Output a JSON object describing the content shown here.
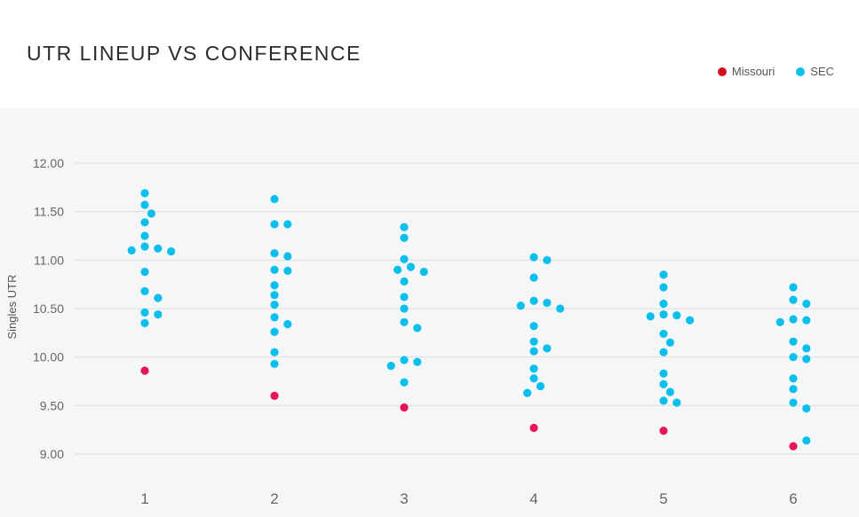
{
  "colors": {
    "missouri": "#e8135a",
    "missouri_legend": "#d0101b",
    "sec": "#0abfeb",
    "grid": "#dcdcdc",
    "plot_bg": "#f5f6f8"
  },
  "chart_data": {
    "type": "scatter",
    "title": "UTR LINEUP VS CONFERENCE",
    "ylabel": "Singles UTR",
    "xlabel": "",
    "ylim": [
      9.0,
      12.0
    ],
    "y_ticks": [
      "12.00",
      "11.50",
      "11.00",
      "10.50",
      "10.00",
      "9.50",
      "9.00"
    ],
    "categories": [
      "1",
      "2",
      "3",
      "4",
      "5",
      "6"
    ],
    "legend": {
      "position": "top-right"
    },
    "grid": true,
    "series": [
      {
        "name": "Missouri",
        "points": [
          {
            "x": "1",
            "y": 9.86
          },
          {
            "x": "2",
            "y": 9.6
          },
          {
            "x": "3",
            "y": 9.48
          },
          {
            "x": "4",
            "y": 9.27
          },
          {
            "x": "5",
            "y": 9.24
          },
          {
            "x": "6",
            "y": 9.08
          }
        ]
      },
      {
        "name": "SEC",
        "points": [
          {
            "x": "1",
            "y": 11.69
          },
          {
            "x": "1",
            "y": 11.57
          },
          {
            "x": "1",
            "y": 11.48
          },
          {
            "x": "1",
            "y": 11.39
          },
          {
            "x": "1",
            "y": 11.25
          },
          {
            "x": "1",
            "y": 11.14
          },
          {
            "x": "1",
            "y": 11.12
          },
          {
            "x": "1",
            "y": 11.1
          },
          {
            "x": "1",
            "y": 11.09
          },
          {
            "x": "1",
            "y": 10.88
          },
          {
            "x": "1",
            "y": 10.68
          },
          {
            "x": "1",
            "y": 10.61
          },
          {
            "x": "1",
            "y": 10.46
          },
          {
            "x": "1",
            "y": 10.44
          },
          {
            "x": "1",
            "y": 10.35
          },
          {
            "x": "2",
            "y": 11.63
          },
          {
            "x": "2",
            "y": 11.37
          },
          {
            "x": "2",
            "y": 11.37
          },
          {
            "x": "2",
            "y": 11.07
          },
          {
            "x": "2",
            "y": 11.04
          },
          {
            "x": "2",
            "y": 10.9
          },
          {
            "x": "2",
            "y": 10.89
          },
          {
            "x": "2",
            "y": 10.74
          },
          {
            "x": "2",
            "y": 10.64
          },
          {
            "x": "2",
            "y": 10.54
          },
          {
            "x": "2",
            "y": 10.41
          },
          {
            "x": "2",
            "y": 10.34
          },
          {
            "x": "2",
            "y": 10.26
          },
          {
            "x": "2",
            "y": 10.05
          },
          {
            "x": "2",
            "y": 9.93
          },
          {
            "x": "3",
            "y": 11.34
          },
          {
            "x": "3",
            "y": 11.23
          },
          {
            "x": "3",
            "y": 11.01
          },
          {
            "x": "3",
            "y": 10.93
          },
          {
            "x": "3",
            "y": 10.9
          },
          {
            "x": "3",
            "y": 10.88
          },
          {
            "x": "3",
            "y": 10.78
          },
          {
            "x": "3",
            "y": 10.62
          },
          {
            "x": "3",
            "y": 10.5
          },
          {
            "x": "3",
            "y": 10.36
          },
          {
            "x": "3",
            "y": 10.3
          },
          {
            "x": "3",
            "y": 9.97
          },
          {
            "x": "3",
            "y": 9.95
          },
          {
            "x": "3",
            "y": 9.91
          },
          {
            "x": "3",
            "y": 9.74
          },
          {
            "x": "4",
            "y": 11.03
          },
          {
            "x": "4",
            "y": 11.0
          },
          {
            "x": "4",
            "y": 10.82
          },
          {
            "x": "4",
            "y": 10.58
          },
          {
            "x": "4",
            "y": 10.56
          },
          {
            "x": "4",
            "y": 10.53
          },
          {
            "x": "4",
            "y": 10.5
          },
          {
            "x": "4",
            "y": 10.32
          },
          {
            "x": "4",
            "y": 10.16
          },
          {
            "x": "4",
            "y": 10.09
          },
          {
            "x": "4",
            "y": 10.06
          },
          {
            "x": "4",
            "y": 9.88
          },
          {
            "x": "4",
            "y": 9.78
          },
          {
            "x": "4",
            "y": 9.7
          },
          {
            "x": "4",
            "y": 9.63
          },
          {
            "x": "5",
            "y": 10.85
          },
          {
            "x": "5",
            "y": 10.72
          },
          {
            "x": "5",
            "y": 10.55
          },
          {
            "x": "5",
            "y": 10.44
          },
          {
            "x": "5",
            "y": 10.43
          },
          {
            "x": "5",
            "y": 10.42
          },
          {
            "x": "5",
            "y": 10.38
          },
          {
            "x": "5",
            "y": 10.24
          },
          {
            "x": "5",
            "y": 10.15
          },
          {
            "x": "5",
            "y": 10.05
          },
          {
            "x": "5",
            "y": 9.83
          },
          {
            "x": "5",
            "y": 9.72
          },
          {
            "x": "5",
            "y": 9.64
          },
          {
            "x": "5",
            "y": 9.55
          },
          {
            "x": "5",
            "y": 9.53
          },
          {
            "x": "6",
            "y": 10.72
          },
          {
            "x": "6",
            "y": 10.59
          },
          {
            "x": "6",
            "y": 10.55
          },
          {
            "x": "6",
            "y": 10.39
          },
          {
            "x": "6",
            "y": 10.38
          },
          {
            "x": "6",
            "y": 10.36
          },
          {
            "x": "6",
            "y": 10.16
          },
          {
            "x": "6",
            "y": 10.09
          },
          {
            "x": "6",
            "y": 10.0
          },
          {
            "x": "6",
            "y": 9.98
          },
          {
            "x": "6",
            "y": 9.78
          },
          {
            "x": "6",
            "y": 9.67
          },
          {
            "x": "6",
            "y": 9.53
          },
          {
            "x": "6",
            "y": 9.47
          },
          {
            "x": "6",
            "y": 9.14
          }
        ]
      }
    ]
  }
}
